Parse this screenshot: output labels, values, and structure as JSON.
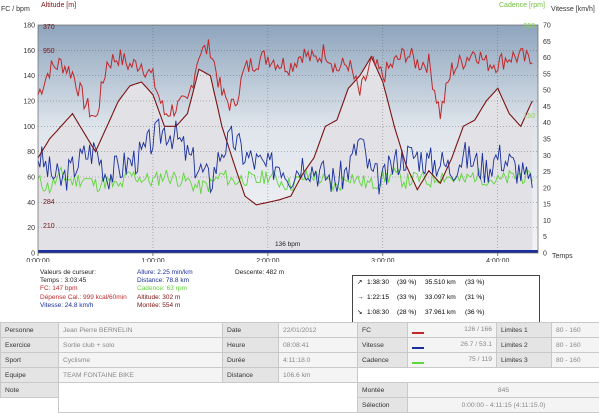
{
  "chart": {
    "left_axis_title": "FC / bpm",
    "altitude_axis_title": "Altitude [m]",
    "right_axis_title": "Vitesse [km/h]",
    "cadence_axis_title": "Cadence [rpm]",
    "time_axis_title": "Temps",
    "hr_ticks": [
      "0",
      "20",
      "40",
      "60",
      "80",
      "100",
      "120",
      "140",
      "160",
      "180"
    ],
    "alt_ticks": [
      "210",
      "284",
      "950",
      "370"
    ],
    "speed_ticks": [
      "0",
      "5",
      "10",
      "15",
      "20",
      "25",
      "30",
      "35",
      "40",
      "45",
      "50",
      "55",
      "60",
      "65",
      "70"
    ],
    "cadence_ticks": [
      "150",
      "200"
    ],
    "time_ticks": [
      "0:00:00",
      "1:00:00",
      "2:00:00",
      "3:00:00",
      "4:00:00"
    ],
    "min_hr_label": "136 bpm",
    "colors": {
      "hr": "#c0282a",
      "altitude": "#7a1212",
      "speed": "#1a2f9c",
      "cadence": "#5fd63a",
      "altitude_fill": "#e2e2e6",
      "sky": "#8ea5bd"
    }
  },
  "chart_data": {
    "type": "line",
    "xlabel": "Temps",
    "x_range_h": [
      0,
      4.35
    ],
    "series": [
      {
        "name": "FC / bpm",
        "axis": "left",
        "ylim": [
          0,
          180
        ],
        "x": [
          0,
          0.1,
          0.2,
          0.3,
          0.4,
          0.5,
          0.6,
          0.7,
          0.8,
          0.9,
          1.0,
          1.1,
          1.2,
          1.3,
          1.4,
          1.5,
          1.6,
          1.7,
          1.8,
          1.9,
          2.0,
          2.1,
          2.2,
          2.3,
          2.4,
          2.5,
          2.6,
          2.7,
          2.8,
          2.9,
          3.0,
          3.1,
          3.2,
          3.3,
          3.4,
          3.5,
          3.6,
          3.7,
          3.8,
          3.9,
          4.0,
          4.1,
          4.2,
          4.3
        ],
        "y": [
          125,
          145,
          150,
          142,
          120,
          105,
          150,
          155,
          148,
          150,
          138,
          110,
          115,
          118,
          158,
          162,
          125,
          115,
          145,
          152,
          155,
          150,
          148,
          158,
          152,
          160,
          145,
          150,
          125,
          150,
          140,
          150,
          158,
          150,
          150,
          110,
          145,
          152,
          160,
          150,
          150,
          155,
          155,
          150
        ]
      },
      {
        "name": "Altitude [m]",
        "axis": "altitude",
        "ylim": [
          200,
          380
        ],
        "x": [
          0,
          0.1,
          0.2,
          0.3,
          0.4,
          0.5,
          0.6,
          0.7,
          0.8,
          0.9,
          1.0,
          1.1,
          1.2,
          1.3,
          1.4,
          1.5,
          1.6,
          1.7,
          1.8,
          1.9,
          2.0,
          2.1,
          2.2,
          2.3,
          2.4,
          2.5,
          2.6,
          2.7,
          2.8,
          2.9,
          3.0,
          3.1,
          3.2,
          3.3,
          3.4,
          3.5,
          3.6,
          3.7,
          3.8,
          3.9,
          4.0,
          4.1,
          4.2,
          4.3
        ],
        "y": [
          275,
          290,
          300,
          310,
          295,
          280,
          300,
          320,
          332,
          335,
          325,
          300,
          300,
          310,
          345,
          340,
          300,
          272,
          245,
          238,
          240,
          242,
          245,
          262,
          275,
          300,
          305,
          330,
          340,
          355,
          335,
          300,
          270,
          250,
          265,
          255,
          275,
          300,
          305,
          320,
          330,
          310,
          300,
          320
        ]
      },
      {
        "name": "Vitesse [km/h]",
        "axis": "right",
        "ylim": [
          0,
          70
        ],
        "x": [
          0,
          0.1,
          0.2,
          0.3,
          0.4,
          0.5,
          0.6,
          0.7,
          0.8,
          0.9,
          1.0,
          1.1,
          1.2,
          1.3,
          1.4,
          1.5,
          1.6,
          1.7,
          1.8,
          1.9,
          2.0,
          2.1,
          2.2,
          2.3,
          2.4,
          2.5,
          2.6,
          2.7,
          2.8,
          2.9,
          3.0,
          3.1,
          3.2,
          3.3,
          3.4,
          3.5,
          3.6,
          3.7,
          3.8,
          3.9,
          4.0,
          4.1,
          4.2,
          4.3
        ],
        "y": [
          30,
          25,
          22,
          26,
          30,
          32,
          24,
          26,
          28,
          30,
          35,
          38,
          36,
          30,
          26,
          22,
          32,
          35,
          30,
          28,
          26,
          28,
          24,
          28,
          26,
          24,
          22,
          26,
          35,
          24,
          22,
          28,
          30,
          30,
          28,
          28,
          26,
          30,
          28,
          26,
          30,
          28,
          25,
          20
        ]
      },
      {
        "name": "Cadence [rpm]",
        "axis": "right",
        "ylim": [
          0,
          70
        ],
        "x": [
          0,
          0.1,
          0.2,
          0.3,
          0.4,
          0.5,
          0.6,
          0.7,
          0.8,
          0.9,
          1.0,
          1.1,
          1.2,
          1.3,
          1.4,
          1.5,
          1.6,
          1.7,
          1.8,
          1.9,
          2.0,
          2.1,
          2.2,
          2.3,
          2.4,
          2.5,
          2.6,
          2.7,
          2.8,
          2.9,
          3.0,
          3.1,
          3.2,
          3.3,
          3.4,
          3.5,
          3.6,
          3.7,
          3.8,
          3.9,
          4.0,
          4.1,
          4.2,
          4.3
        ],
        "y": [
          22,
          20,
          24,
          22,
          23,
          21,
          22,
          20,
          24,
          23,
          22,
          24,
          23,
          22,
          20,
          21,
          24,
          22,
          23,
          22,
          24,
          22,
          21,
          23,
          24,
          22,
          20,
          24,
          22,
          21,
          23,
          24,
          22,
          23,
          22,
          24,
          23,
          22,
          24,
          23,
          22,
          23,
          24,
          22
        ]
      }
    ]
  },
  "cursor": {
    "title": "Valeurs de curseur:",
    "time": "Temps : 3:03:45",
    "hr": "FC: 147 bpm",
    "calories": "Dépense Cal.: 999 kcal/60min",
    "speed": "Vitesse: 24.8 km/h",
    "pace": "Allure: 2.25 min/km",
    "distance": "Distance: 78.8 km",
    "cadence": "Cadence: 63 rpm",
    "altitude": "Altitude: 302 m",
    "ascent": "Montée: 554 m",
    "descent": "Descente: 482 m"
  },
  "laps": [
    {
      "arrow": "↗",
      "time": "1:38:30",
      "pct": "(39 %)",
      "dist": "35.510 km",
      "dpct": "(33 %)"
    },
    {
      "arrow": "→",
      "time": "1:22:15",
      "pct": "(33 %)",
      "dist": "33.097 km",
      "dpct": "(31 %)"
    },
    {
      "arrow": "↘",
      "time": "1:08:30",
      "pct": "(28 %)",
      "dist": "37.961 km",
      "dpct": "(36 %)"
    }
  ],
  "info": {
    "row1": {
      "l1": "Personne",
      "v1": "Jean Pierre BERNELIN",
      "l2": "Date",
      "v2": "22/01/2012",
      "l3": "FC",
      "v3": "126 / 166",
      "l4": "Limites 1",
      "v4": "80 - 160"
    },
    "row2": {
      "l1": "Exercice",
      "v1": "Sortie club + solo",
      "l2": "Heure",
      "v2": "08:08:41",
      "l3": "Vitesse",
      "v3": "26.7 / 53.1",
      "l4": "Limites 2",
      "v4": "80 - 160"
    },
    "row3": {
      "l1": "Sport",
      "v1": "Cyclisme",
      "l2": "Durée",
      "v2": "4:11:18.0",
      "l3": "Cadence",
      "v3": "75 / 119",
      "l4": "Limites 3",
      "v4": "80 - 160"
    },
    "row4": {
      "l1": "Equipe",
      "v1": "TEAM FONTAINE BIKE",
      "l2": "Distance",
      "v2": "106.6 km"
    },
    "row5": {
      "l1": "Note",
      "l3": "Montée",
      "v3": "845"
    },
    "row6": {
      "l3": "Sélection",
      "v3": "0:00:00 - 4:11:15 (4:11:15.0)"
    }
  }
}
